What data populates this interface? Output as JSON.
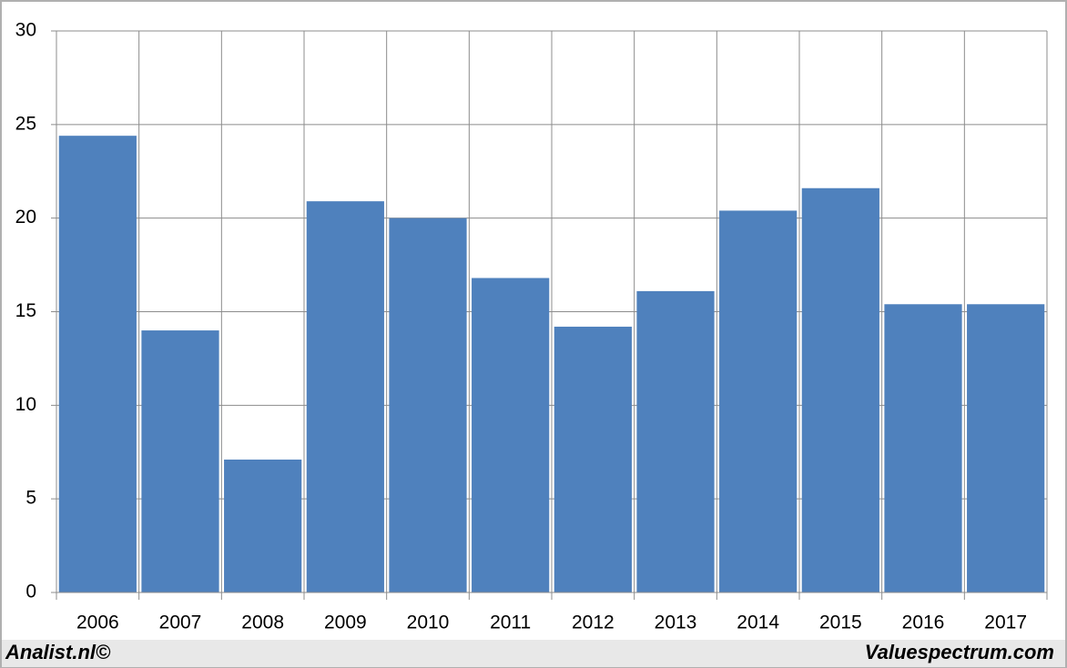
{
  "chart_data": {
    "type": "bar",
    "categories": [
      "2006",
      "2007",
      "2008",
      "2009",
      "2010",
      "2011",
      "2012",
      "2013",
      "2014",
      "2015",
      "2016",
      "2017"
    ],
    "values": [
      24.4,
      14.0,
      7.1,
      20.9,
      20.0,
      16.8,
      14.2,
      16.1,
      20.4,
      21.6,
      15.4,
      15.4
    ],
    "color": "#4f81bd",
    "ylim": [
      0,
      30
    ],
    "yticks": [
      0,
      5,
      10,
      15,
      20,
      25,
      30
    ],
    "grid": true
  },
  "footer": {
    "left": "Analist.nl©",
    "right": "Valuespectrum.com"
  }
}
